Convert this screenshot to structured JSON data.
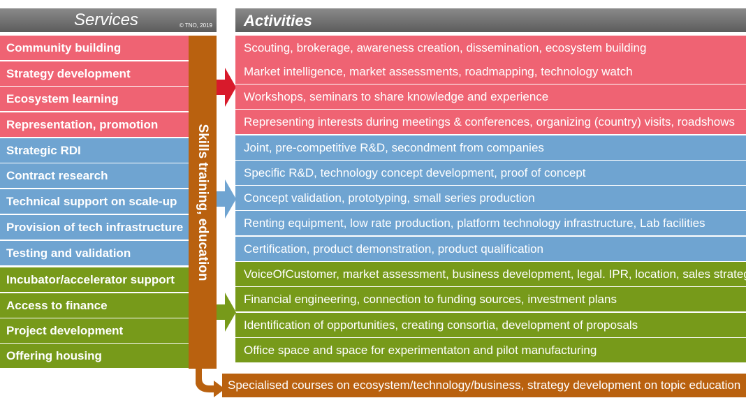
{
  "services_header": {
    "title": "Services",
    "copyright": "© TNO, 2019"
  },
  "activities_header": {
    "title": "Activities"
  },
  "skills_label": "Skills training, education",
  "education_bar": "Specialised courses on ecosystem/technology/business, strategy development on topic education",
  "colors": {
    "red": "#ef6373",
    "blue": "#6fa4d1",
    "green": "#779a1a",
    "orange": "#b9610f",
    "header": "#6e6e6e"
  },
  "services": [
    {
      "label": "Community building",
      "group": "red"
    },
    {
      "label": "Strategy development",
      "group": "red"
    },
    {
      "label": "Ecosystem learning",
      "group": "red"
    },
    {
      "label": "Representation, promotion",
      "group": "red"
    },
    {
      "label": "Strategic RDI",
      "group": "blue"
    },
    {
      "label": "Contract research",
      "group": "blue"
    },
    {
      "label": "Technical support on scale-up",
      "group": "blue"
    },
    {
      "label": "Provision of tech infrastructure",
      "group": "blue"
    },
    {
      "label": "Testing and validation",
      "group": "blue"
    },
    {
      "label": "Incubator/accelerator  support",
      "group": "green"
    },
    {
      "label": "Access to finance",
      "group": "green"
    },
    {
      "label": "Project development",
      "group": "green"
    },
    {
      "label": "Offering housing",
      "group": "green"
    }
  ],
  "activities": [
    {
      "label": "Scouting, brokerage, awareness creation, dissemination, ecosystem building",
      "group": "red"
    },
    {
      "label": "Market intelligence, market assessments, roadmapping, technology watch",
      "group": "red"
    },
    {
      "label": "Workshops, seminars to share knowledge and experience",
      "group": "red"
    },
    {
      "label": "Representing interests during meetings & conferences, organizing (country) visits, roadshows",
      "group": "red"
    },
    {
      "label": "Joint, pre-competitive R&D, secondment from companies",
      "group": "blue"
    },
    {
      "label": "Specific R&D, technology concept development, proof of concept",
      "group": "blue"
    },
    {
      "label": "Concept validation, prototyping, small series production",
      "group": "blue"
    },
    {
      "label": "Renting equipment, low rate production, platform technology infrastructure, Lab facilities",
      "group": "blue"
    },
    {
      "label": "Certification, product demonstration, product qualification",
      "group": "blue"
    },
    {
      "label": "VoiceOfCustomer, market assessment, business development, legal. IPR, location, sales strategy",
      "group": "green"
    },
    {
      "label": "Financial engineering, connection to funding sources, investment plans",
      "group": "green"
    },
    {
      "label": "Identification of opportunities, creating consortia, development of proposals",
      "group": "green"
    },
    {
      "label": "Office space and space for experimentaton and pilot manufacturing",
      "group": "green"
    }
  ]
}
